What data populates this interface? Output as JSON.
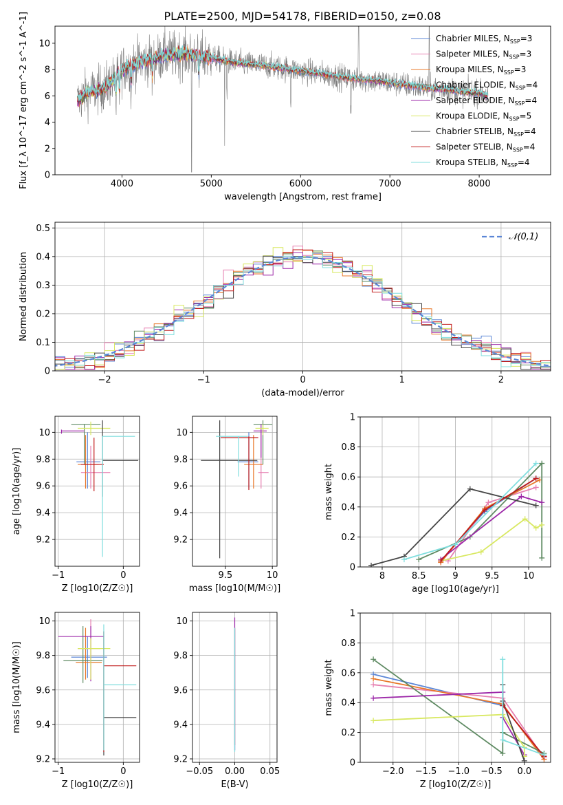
{
  "figure": {
    "title": "PLATE=2500, MJD=54178, FIBERID=0150, z=0.08"
  },
  "series_styles": [
    {
      "name": "Chabrier MILES, N_SSP=3",
      "color": "#5b86d6"
    },
    {
      "name": "Salpeter MILES, N_SSP=3",
      "color": "#e67fb0"
    },
    {
      "name": "Kroupa MILES, N_SSP=3",
      "color": "#e8782a"
    },
    {
      "name": "Chabrier ELODIE, N_SSP=4",
      "color": "#5e8a62"
    },
    {
      "name": "Salpeter ELODIE, N_SSP=4",
      "color": "#9c27a8"
    },
    {
      "name": "Kroupa ELODIE, N_SSP=5",
      "color": "#d8e860"
    },
    {
      "name": "Chabrier STELIB, N_SSP=4",
      "color": "#444444"
    },
    {
      "name": "Salpeter STELIB, N_SSP=4",
      "color": "#c11a1a"
    },
    {
      "name": "Kroupa STELIB, N_SSP=4",
      "color": "#7fdede"
    }
  ],
  "chart_data": [
    {
      "id": "spectrum",
      "type": "line",
      "xlabel": "wavelength [Angstrom, rest frame]",
      "ylabel": "Flux [f_λ 10^-17 erg cm^-2 s^-1 A^-1]",
      "xlim": [
        3250,
        8800
      ],
      "ylim": [
        0,
        11.3
      ],
      "xticks": [
        4000,
        5000,
        6000,
        7000,
        8000
      ],
      "yticks": [
        0,
        2,
        4,
        6,
        8,
        10
      ],
      "grid": false,
      "legend": "upper right",
      "legend_entries": [
        {
          "main": "Chabrier MILES, N",
          "sub": "SSP",
          "tail": "=3"
        },
        {
          "main": "Salpeter MILES, N",
          "sub": "SSP",
          "tail": "=3"
        },
        {
          "main": "Kroupa MILES, N",
          "sub": "SSP",
          "tail": "=3"
        },
        {
          "main": "Chabrier ELODIE, N",
          "sub": "SSP",
          "tail": "=4"
        },
        {
          "main": "Salpeter ELODIE, N",
          "sub": "SSP",
          "tail": "=4"
        },
        {
          "main": "Kroupa ELODIE, N",
          "sub": "SSP",
          "tail": "=5"
        },
        {
          "main": "Chabrier STELIB, N",
          "sub": "SSP",
          "tail": "=4"
        },
        {
          "main": "Salpeter STELIB, N",
          "sub": "SSP",
          "tail": "=4"
        },
        {
          "main": "Kroupa STELIB, N",
          "sub": "SSP",
          "tail": "=4"
        }
      ],
      "continuum": {
        "x": [
          3500,
          3600,
          3700,
          3800,
          3900,
          4000,
          4100,
          4200,
          4300,
          4400,
          4500,
          4600,
          4700,
          4800,
          4900,
          5000,
          5200,
          5400,
          5600,
          5800,
          6000,
          6200,
          6400,
          6600,
          6800,
          7000,
          7200,
          7400,
          7600,
          7800,
          8000,
          8100
        ],
        "y": [
          5.6,
          6.2,
          6.4,
          6.6,
          7.2,
          8.0,
          8.3,
          8.6,
          8.7,
          8.9,
          9.1,
          9.1,
          9.2,
          9.1,
          9.0,
          8.9,
          8.6,
          8.4,
          8.3,
          8.1,
          7.9,
          7.7,
          7.5,
          7.3,
          7.2,
          7.0,
          6.8,
          6.6,
          6.5,
          6.3,
          6.2,
          6.0
        ]
      }
    },
    {
      "id": "residuals",
      "type": "histogram",
      "xlabel": "(data-model)/error",
      "ylabel": "Normed distribution",
      "xlim": [
        -2.5,
        2.5
      ],
      "ylim": [
        0,
        0.52
      ],
      "xticks": [
        -2,
        -1,
        0,
        1,
        2
      ],
      "yticks": [
        0.0,
        0.1,
        0.2,
        0.3,
        0.4,
        0.5
      ],
      "grid": true,
      "legend": "upper right",
      "reference_curve": {
        "label": "𝒩(0,1)",
        "type": "normal pdf",
        "mean": 0,
        "sigma": 1
      },
      "bin_width": 0.1
    },
    {
      "id": "age-vs-Z",
      "type": "errorbar",
      "xlabel": "Z [log10(Z/Z☉)]",
      "ylabel": "age [log10(age/yr)]",
      "xlim": [
        -1.05,
        0.25
      ],
      "ylim": [
        9.0,
        10.12
      ],
      "xticks": [
        -1,
        0
      ],
      "yticks": [
        9.2,
        9.4,
        9.6,
        9.8,
        10.0
      ],
      "grid": true,
      "points": [
        {
          "x": -0.55,
          "y": 9.78,
          "xerr": [
            0.17,
            0.2
          ],
          "yerr": [
            0.2,
            0.22
          ]
        },
        {
          "x": -0.5,
          "y": 9.7,
          "xerr": [
            0.15,
            0.3
          ],
          "yerr": [
            0.12,
            0.2
          ]
        },
        {
          "x": -0.58,
          "y": 9.76,
          "xerr": [
            0.12,
            0.2
          ],
          "yerr": [
            0.18,
            0.22
          ]
        },
        {
          "x": -0.6,
          "y": 10.06,
          "xerr": [
            0.2,
            0.25
          ],
          "yerr": [
            0.3,
            0.0
          ]
        },
        {
          "x": -0.95,
          "y": 10.01,
          "xerr": [
            0.0,
            0.35
          ],
          "yerr": [
            0.02,
            0.01
          ]
        },
        {
          "x": -0.5,
          "y": 10.03,
          "xerr": [
            0.2,
            0.3
          ],
          "yerr": [
            0.05,
            0.05
          ]
        },
        {
          "x": -0.32,
          "y": 9.79,
          "xerr": [
            0.0,
            0.55
          ],
          "yerr": [
            0.27,
            0.3
          ]
        },
        {
          "x": -0.45,
          "y": 9.76,
          "xerr": [
            0.2,
            0.15
          ],
          "yerr": [
            0.2,
            0.2
          ]
        },
        {
          "x": -0.32,
          "y": 9.97,
          "xerr": [
            0.0,
            0.5
          ],
          "yerr": [
            0.9,
            0.0
          ]
        }
      ]
    },
    {
      "id": "age-vs-mass",
      "type": "errorbar",
      "xlabel": "mass [log10(M/M☉)]",
      "ylabel": "",
      "xlim": [
        9.15,
        10.05
      ],
      "ylim": [
        9.0,
        10.12
      ],
      "xticks": [
        9.5,
        10.0
      ],
      "yticks": [
        9.2,
        9.4,
        9.6,
        9.8,
        10.0
      ],
      "grid": true,
      "points": [
        {
          "x": 9.75,
          "y": 9.78,
          "xerr": [
            0.12,
            0.1
          ],
          "yerr": [
            0.2,
            0.22
          ]
        },
        {
          "x": 9.88,
          "y": 9.7,
          "xerr": [
            0.03,
            0.08
          ],
          "yerr": [
            0.12,
            0.3
          ]
        },
        {
          "x": 9.8,
          "y": 9.76,
          "xerr": [
            0.1,
            0.1
          ],
          "yerr": [
            0.18,
            0.22
          ]
        },
        {
          "x": 9.9,
          "y": 10.06,
          "xerr": [
            0.1,
            0.1
          ],
          "yerr": [
            0.3,
            0.03
          ]
        },
        {
          "x": 9.88,
          "y": 10.01,
          "xerr": [
            0.08,
            0.06
          ],
          "yerr": [
            0.2,
            0.05
          ]
        },
        {
          "x": 9.9,
          "y": 10.03,
          "xerr": [
            0.08,
            0.06
          ],
          "yerr": [
            0.05,
            0.03
          ]
        },
        {
          "x": 9.44,
          "y": 9.79,
          "xerr": [
            0.2,
            0.4
          ],
          "yerr": [
            0.73,
            0.3
          ]
        },
        {
          "x": 9.75,
          "y": 9.96,
          "xerr": [
            0.3,
            0.1
          ],
          "yerr": [
            0.39,
            0.01
          ]
        },
        {
          "x": 9.64,
          "y": 9.97,
          "xerr": [
            0.24,
            0.1
          ],
          "yerr": [
            0.3,
            0.0
          ]
        }
      ]
    },
    {
      "id": "weight-vs-age",
      "type": "line",
      "xlabel": "age [log10(age/yr)]",
      "ylabel": "mass weight",
      "xlim": [
        7.7,
        10.3
      ],
      "ylim": [
        0,
        1.0
      ],
      "xticks": [
        8.0,
        8.5,
        9.0,
        9.5,
        10.0
      ],
      "yticks": [
        0.0,
        0.2,
        0.4,
        0.6,
        0.8,
        1.0
      ],
      "grid": true,
      "series": [
        {
          "x": [
            8.8,
            9.4,
            10.1
          ],
          "y": [
            0.04,
            0.37,
            0.59
          ]
        },
        {
          "x": [
            8.9,
            9.45,
            10.1
          ],
          "y": [
            0.04,
            0.43,
            0.53
          ]
        },
        {
          "x": [
            8.8,
            9.4,
            10.15
          ],
          "y": [
            0.03,
            0.39,
            0.58
          ]
        },
        {
          "x": [
            8.5,
            9.2,
            10.18,
            10.18
          ],
          "y": [
            0.05,
            0.2,
            0.69,
            0.06
          ]
        },
        {
          "x": [
            8.8,
            9.9,
            10.18
          ],
          "y": [
            0.05,
            0.47,
            0.43
          ]
        },
        {
          "x": [
            8.8,
            9.35,
            9.95,
            10.1,
            10.18
          ],
          "y": [
            0.04,
            0.1,
            0.32,
            0.26,
            0.28
          ]
        },
        {
          "x": [
            7.85,
            8.3,
            9.2,
            10.1
          ],
          "y": [
            0.01,
            0.07,
            0.52,
            0.41
          ]
        },
        {
          "x": [
            8.8,
            9.4,
            10.1
          ],
          "y": [
            0.04,
            0.38,
            0.59
          ]
        },
        {
          "x": [
            8.3,
            9.0,
            10.1
          ],
          "y": [
            0.05,
            0.15,
            0.69
          ]
        }
      ]
    },
    {
      "id": "mass-vs-Z",
      "type": "errorbar",
      "xlabel": "Z [log10(Z/Z☉)]",
      "ylabel": "mass [log10(M/M☉)]",
      "xlim": [
        -1.05,
        0.25
      ],
      "ylim": [
        9.18,
        10.05
      ],
      "xticks": [
        -1,
        0
      ],
      "yticks": [
        9.2,
        9.4,
        9.6,
        9.8,
        10.0
      ],
      "grid": true,
      "points": [
        {
          "x": -0.55,
          "y": 9.79,
          "xerr": [
            0.25,
            0.3
          ],
          "yerr": [
            0.12,
            0.12
          ]
        },
        {
          "x": -0.5,
          "y": 9.84,
          "xerr": [
            0.2,
            0.15
          ],
          "yerr": [
            0.18,
            0.17
          ]
        },
        {
          "x": -0.58,
          "y": 9.76,
          "xerr": [
            0.15,
            0.25
          ],
          "yerr": [
            0.1,
            0.2
          ]
        },
        {
          "x": -0.62,
          "y": 9.77,
          "xerr": [
            0.3,
            0.3
          ],
          "yerr": [
            0.13,
            0.2
          ]
        },
        {
          "x": -0.5,
          "y": 9.91,
          "xerr": [
            0.5,
            0.2
          ],
          "yerr": [
            0.26,
            0.06
          ]
        },
        {
          "x": -0.5,
          "y": 9.84,
          "xerr": [
            0.2,
            0.3
          ],
          "yerr": [
            0.18,
            0.06
          ]
        },
        {
          "x": -0.3,
          "y": 9.44,
          "xerr": [
            0.0,
            0.5
          ],
          "yerr": [
            0.22,
            0.5
          ]
        },
        {
          "x": -0.3,
          "y": 9.74,
          "xerr": [
            0.0,
            0.5
          ],
          "yerr": [
            0.5,
            0.2
          ]
        },
        {
          "x": -0.3,
          "y": 9.63,
          "xerr": [
            0.0,
            0.5
          ],
          "yerr": [
            0.38,
            0.35
          ]
        }
      ]
    },
    {
      "id": "mass-vs-EBV",
      "type": "errorbar",
      "xlabel": "E(B-V)",
      "ylabel": "",
      "xlim": [
        -0.06,
        0.06
      ],
      "ylim": [
        9.18,
        10.05
      ],
      "xticks": [
        -0.05,
        0.0,
        0.05
      ],
      "xtick_labels": [
        "−0.05",
        "0.00",
        "0.05"
      ],
      "yticks": [
        9.2,
        9.4,
        9.6,
        9.8,
        10.0
      ],
      "grid": true,
      "points": [
        {
          "x": 0,
          "y": 9.8,
          "xerr": [
            0,
            0
          ],
          "yerr": [
            0.55,
            0.15
          ]
        },
        {
          "x": 0,
          "y": 9.9,
          "xerr": [
            0,
            0
          ],
          "yerr": [
            0.65,
            0.12
          ]
        },
        {
          "x": 0,
          "y": 9.88,
          "xerr": [
            0,
            0
          ],
          "yerr": [
            0.6,
            0.08
          ]
        },
        {
          "x": 0,
          "y": 9.9,
          "xerr": [
            0,
            0
          ],
          "yerr": [
            0.66,
            0.06
          ]
        }
      ]
    },
    {
      "id": "weight-vs-Z",
      "type": "line",
      "xlabel": "Z [log10(Z/Z☉)]",
      "ylabel": "mass weight",
      "xlim": [
        -2.5,
        0.4
      ],
      "ylim": [
        0,
        1.0
      ],
      "xticks": [
        -2.0,
        -1.5,
        -1.0,
        -0.5,
        0.0
      ],
      "xtick_labels": [
        "−2.0",
        "−1.5",
        "−1.0",
        "−0.5",
        "0.0"
      ],
      "yticks": [
        0.0,
        0.2,
        0.4,
        0.6,
        0.8,
        1.0
      ],
      "grid": true,
      "series": [
        {
          "x": [
            -2.3,
            -0.33,
            0.3
          ],
          "y": [
            0.59,
            0.38,
            0.04
          ]
        },
        {
          "x": [
            -2.3,
            -0.33,
            0.3
          ],
          "y": [
            0.52,
            0.43,
            0.03
          ]
        },
        {
          "x": [
            -2.3,
            -0.33,
            0.3
          ],
          "y": [
            0.56,
            0.39,
            0.02
          ]
        },
        {
          "x": [
            -2.3,
            -0.33,
            -0.33,
            0.3
          ],
          "y": [
            0.69,
            0.06,
            0.2,
            0.06
          ]
        },
        {
          "x": [
            -2.3,
            -0.33,
            -0.33,
            0.0
          ],
          "y": [
            0.43,
            0.47,
            0.3,
            0.05
          ]
        },
        {
          "x": [
            -2.3,
            -0.33,
            0.0,
            0.0
          ],
          "y": [
            0.28,
            0.32,
            0.1,
            0.04
          ]
        },
        {
          "x": [
            -0.33,
            -0.33,
            0.0
          ],
          "y": [
            0.52,
            0.41,
            0.01
          ]
        },
        {
          "x": [
            -0.33,
            0.3
          ],
          "y": [
            0.38,
            0.04
          ]
        },
        {
          "x": [
            -0.33,
            -0.33,
            0.3
          ],
          "y": [
            0.69,
            0.15,
            0.05
          ]
        }
      ]
    }
  ]
}
